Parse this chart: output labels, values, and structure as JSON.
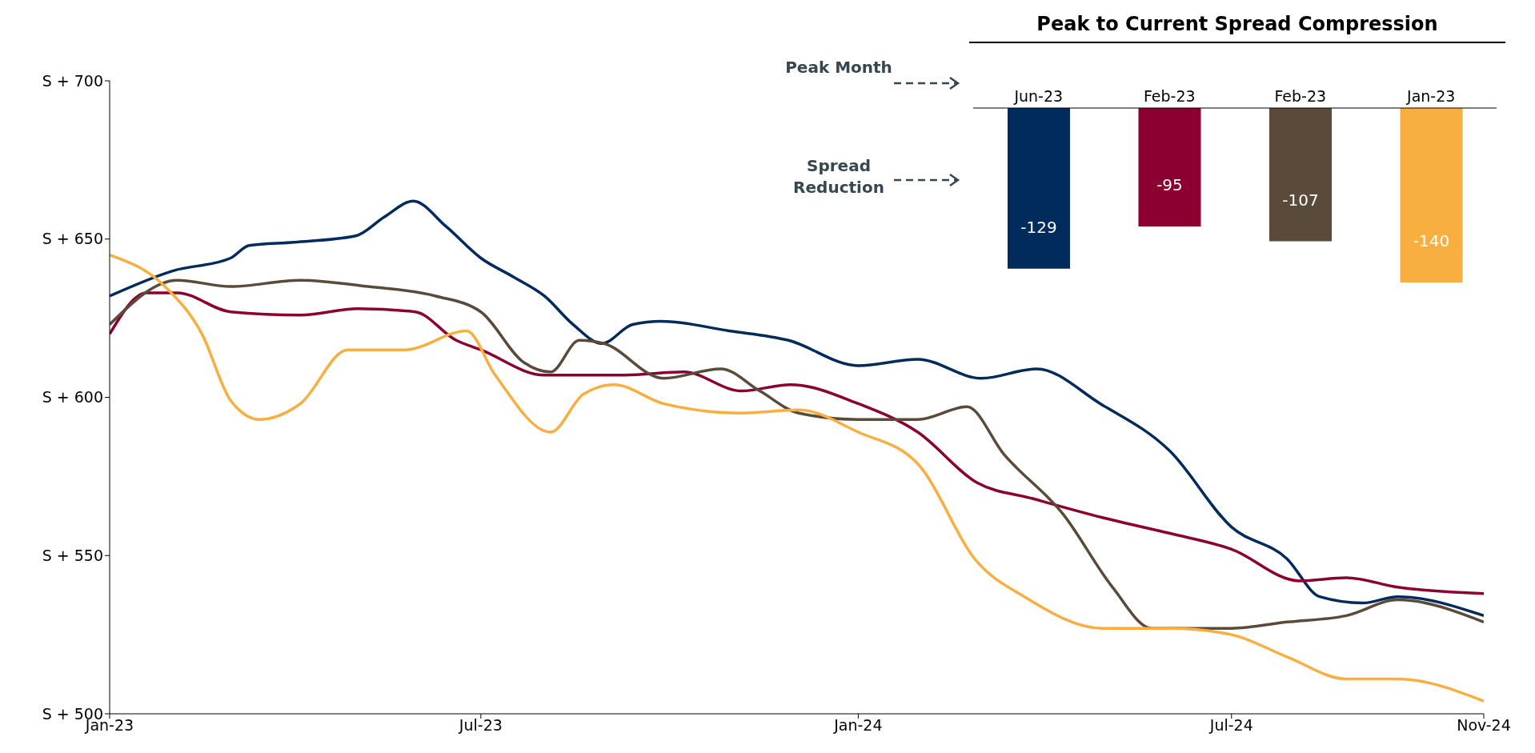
{
  "chart_data": [
    {
      "type": "line",
      "xlim": [
        "2023-01",
        "2024-11"
      ],
      "xticks": [
        {
          "value": "2023-01",
          "label": "Jan-23"
        },
        {
          "value": "2023-07",
          "label": "Jul-23"
        },
        {
          "value": "2024-01",
          "label": "Jan-24"
        },
        {
          "value": "2024-07",
          "label": "Jul-24"
        },
        {
          "value": "2024-11",
          "label": "Nov-24"
        }
      ],
      "ylim": [
        500,
        700
      ],
      "yticks": [
        {
          "value": 500,
          "label": "S + 500"
        },
        {
          "value": 550,
          "label": "S + 550"
        },
        {
          "value": 600,
          "label": "S + 600"
        },
        {
          "value": 650,
          "label": "S + 650"
        },
        {
          "value": 700,
          "label": "S + 700"
        }
      ],
      "grid": false,
      "legend": false,
      "marker": "none",
      "line_style": "solid",
      "series": [
        {
          "color": "#002b5c",
          "x": [
            "2023-01-01",
            "2023-02-01",
            "2023-03-01",
            "2023-03-10",
            "2023-04-01",
            "2023-05-01",
            "2023-05-15",
            "2023-05-29",
            "2023-06-14",
            "2023-07-01",
            "2023-07-17",
            "2023-08-01",
            "2023-08-15",
            "2023-08-29",
            "2023-09-13",
            "2023-09-27",
            "2023-10-30",
            "2023-11-28",
            "2024-01-01",
            "2024-01-30",
            "2024-03-01",
            "2024-03-28",
            "2024-04-28",
            "2024-06-01",
            "2024-07-01",
            "2024-07-28",
            "2024-08-13",
            "2024-09-03",
            "2024-09-20",
            "2024-11-01"
          ],
          "values": [
            632,
            640,
            644,
            648,
            649,
            651,
            657,
            662,
            654,
            644,
            638,
            632,
            623,
            617,
            623,
            624,
            621,
            618,
            610,
            612,
            606,
            609,
            598,
            583,
            559,
            549,
            537,
            535,
            537,
            531
          ]
        },
        {
          "color": "#8b0030",
          "x": [
            "2023-01-01",
            "2023-01-19",
            "2023-02-03",
            "2023-03-01",
            "2023-04-04",
            "2023-05-02",
            "2023-05-30",
            "2023-06-19",
            "2023-07-01",
            "2023-08-01",
            "2023-09-09",
            "2023-10-08",
            "2023-11-05",
            "2023-11-29",
            "2024-01-01",
            "2024-01-30",
            "2024-02-28",
            "2024-03-26",
            "2024-04-29",
            "2024-06-01",
            "2024-07-01",
            "2024-08-03",
            "2024-08-26",
            "2024-09-20",
            "2024-11-01"
          ],
          "values": [
            620,
            633,
            633,
            627,
            626,
            628,
            627,
            618,
            615,
            607,
            607,
            608,
            602,
            604,
            598,
            589,
            573,
            568,
            562,
            557,
            552,
            542,
            543,
            540,
            538
          ]
        },
        {
          "color": "#5a4a3a",
          "x": [
            "2023-01-01",
            "2023-02-03",
            "2023-03-01",
            "2023-04-04",
            "2023-05-07",
            "2023-06-09",
            "2023-07-01",
            "2023-07-22",
            "2023-08-04",
            "2023-08-18",
            "2023-08-30",
            "2023-09-28",
            "2023-10-26",
            "2023-11-14",
            "2023-12-03",
            "2024-01-01",
            "2024-01-30",
            "2024-02-23",
            "2024-03-12",
            "2024-04-10",
            "2024-05-04",
            "2024-05-23",
            "2024-07-01",
            "2024-07-28",
            "2024-08-26",
            "2024-09-20",
            "2024-11-01"
          ],
          "values": [
            623,
            637,
            635,
            637,
            635,
            632,
            627,
            611,
            608,
            618,
            617,
            606,
            609,
            602,
            595,
            593,
            593,
            597,
            582,
            563,
            540,
            527,
            527,
            529,
            531,
            536,
            529
          ]
        },
        {
          "color": "#f9ae40",
          "x": [
            "2023-01-01",
            "2023-01-28",
            "2023-02-15",
            "2023-03-01",
            "2023-03-15",
            "2023-04-04",
            "2023-04-27",
            "2023-05-25",
            "2023-06-24",
            "2023-07-08",
            "2023-08-04",
            "2023-08-20",
            "2023-09-04",
            "2023-09-28",
            "2023-11-05",
            "2023-12-03",
            "2024-01-01",
            "2024-01-30",
            "2024-02-28",
            "2024-03-22",
            "2024-04-29",
            "2024-06-01",
            "2024-07-01",
            "2024-07-28",
            "2024-08-26",
            "2024-09-20",
            "2024-11-01"
          ],
          "values": [
            645,
            635,
            620,
            599,
            593,
            598,
            615,
            615,
            621,
            607,
            589,
            601,
            604,
            598,
            595,
            596,
            589,
            579,
            548,
            537,
            527,
            527,
            525,
            518,
            511,
            511,
            504
          ]
        }
      ]
    },
    {
      "type": "bar",
      "title": "Peak to Current Spread Compression",
      "categories": [
        "Jun-23",
        "Feb-23",
        "Feb-23",
        "Jan-23"
      ],
      "values": [
        -129,
        -95,
        -107,
        -140
      ],
      "colors": [
        "#002b5c",
        "#8b0030",
        "#5a4a3a",
        "#f9ae40"
      ],
      "data_labels": true,
      "annotations": [
        "Peak Month",
        "Spread Reduction"
      ]
    }
  ]
}
